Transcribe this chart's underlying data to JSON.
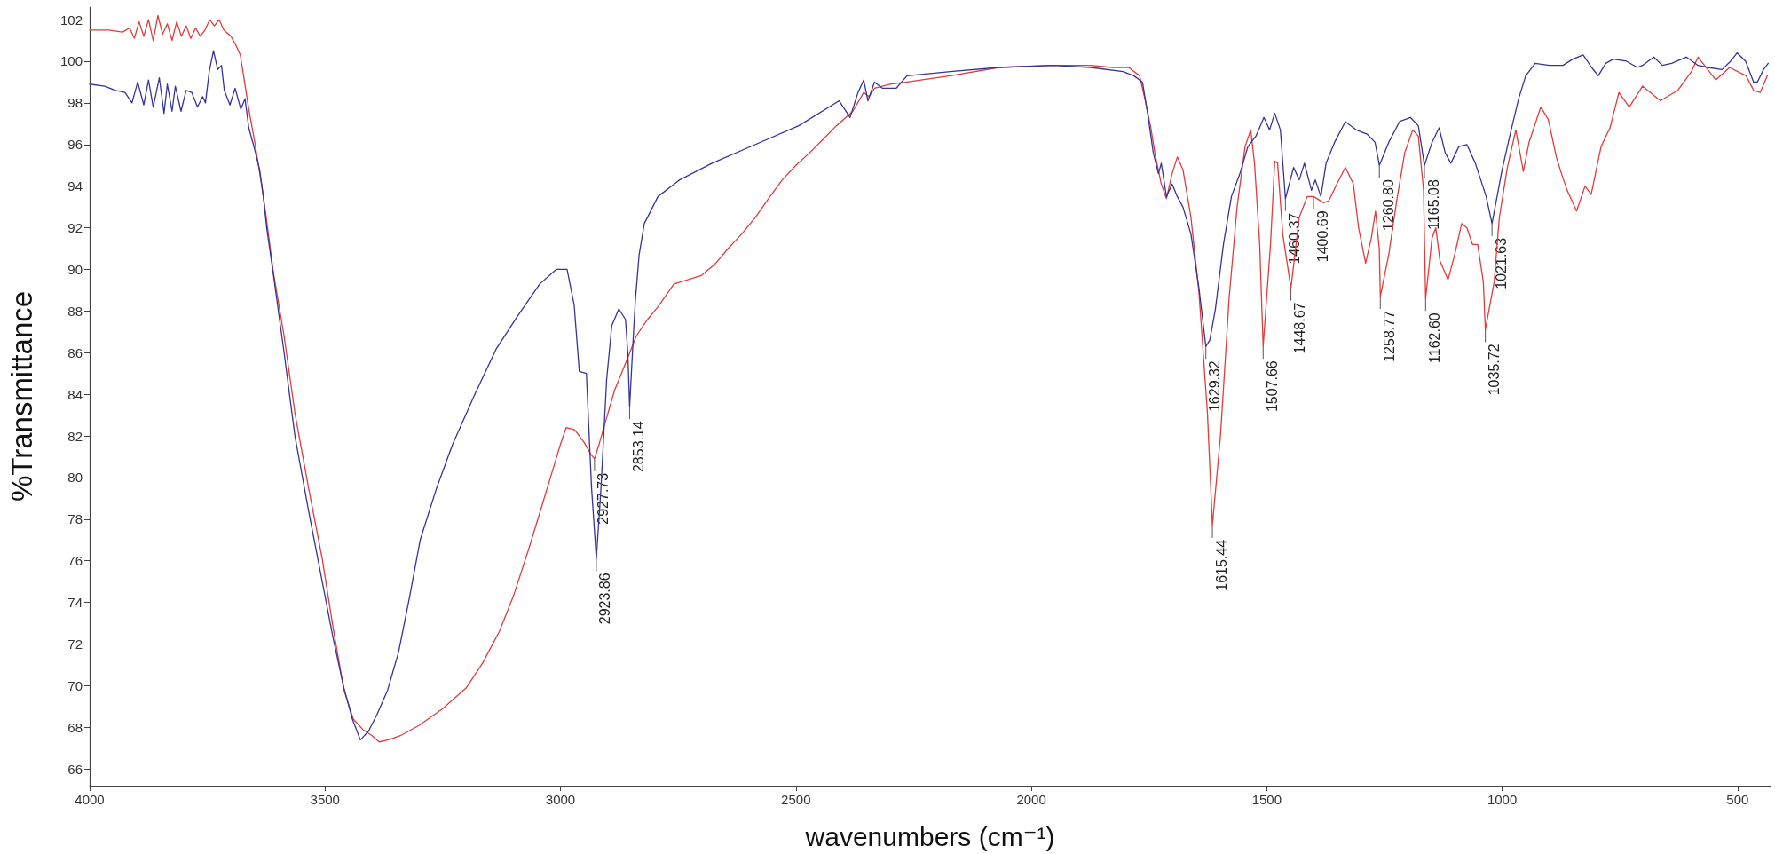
{
  "chart_data": {
    "type": "line",
    "xlabel": "wavenumbers (cm⁻¹)",
    "ylabel": "%Transmittance",
    "xlim": [
      4000,
      430
    ],
    "xticks": [
      4000,
      3500,
      3000,
      2500,
      2000,
      1500,
      1000,
      500
    ],
    "ylim": [
      65.2,
      102.6
    ],
    "yticks": [
      66,
      68,
      70,
      72,
      74,
      76,
      78,
      80,
      82,
      84,
      86,
      88,
      90,
      92,
      94,
      96,
      98,
      100,
      102
    ],
    "series": [
      {
        "color": "#e23b3b",
        "x": [
          4000,
          3960,
          3930,
          3915,
          3905,
          3895,
          3885,
          3875,
          3865,
          3855,
          3845,
          3835,
          3825,
          3815,
          3805,
          3795,
          3785,
          3775,
          3765,
          3755,
          3745,
          3735,
          3725,
          3715,
          3700,
          3690,
          3680,
          3673,
          3662,
          3650,
          3635,
          3625,
          3610,
          3587,
          3564,
          3535,
          3506,
          3483,
          3460,
          3440,
          3420,
          3400,
          3385,
          3365,
          3340,
          3300,
          3250,
          3200,
          3165,
          3130,
          3100,
          3067,
          3040,
          3020,
          3000,
          2988,
          2970,
          2950,
          2935,
          2927.73,
          2918,
          2908,
          2885,
          2860,
          2839,
          2815,
          2793,
          2759,
          2730,
          2701,
          2670,
          2644,
          2615,
          2586,
          2555,
          2529,
          2500,
          2471,
          2440,
          2414,
          2379,
          2356,
          2345,
          2333,
          2300,
          2264,
          2172,
          2069,
          1954,
          1874,
          1828,
          1793,
          1770,
          1759,
          1747,
          1736,
          1724,
          1713,
          1701,
          1690,
          1678,
          1661,
          1644,
          1626,
          1615.44,
          1598,
          1580,
          1563,
          1546,
          1534,
          1526,
          1515,
          1507.66,
          1492,
          1483,
          1477,
          1466,
          1454,
          1448.67,
          1431,
          1414,
          1400.69,
          1379,
          1368,
          1351,
          1333,
          1316,
          1305,
          1290,
          1278,
          1269,
          1261,
          1258.77,
          1241,
          1224,
          1207,
          1190,
          1178,
          1167,
          1162.6,
          1149,
          1141,
          1132,
          1115,
          1101,
          1086,
          1075,
          1063,
          1052,
          1040,
          1035.72,
          1017,
          1006,
          989,
          971,
          955,
          943,
          918,
          902,
          885,
          874,
          862,
          842,
          824,
          811,
          790,
          771,
          752,
          730,
          702,
          664,
          627,
          598,
          584,
          546,
          517,
          482,
          466,
          452,
          437
        ],
        "values": [
          101.5,
          101.5,
          101.4,
          101.6,
          101.1,
          101.9,
          101.2,
          102.0,
          101.0,
          102.2,
          101.3,
          101.8,
          101.0,
          101.9,
          101.2,
          101.7,
          101.1,
          101.6,
          101.2,
          101.5,
          102.0,
          101.7,
          102.0,
          101.5,
          101.2,
          100.8,
          100.3,
          99.3,
          97.7,
          96.2,
          94.1,
          92.5,
          89.9,
          86.8,
          83.1,
          79.5,
          76.1,
          72.8,
          69.8,
          68.4,
          67.9,
          67.6,
          67.3,
          67.4,
          67.6,
          68.1,
          68.9,
          69.9,
          71.1,
          72.6,
          74.3,
          76.6,
          78.6,
          80.1,
          81.6,
          82.4,
          82.3,
          81.7,
          81.1,
          80.9,
          81.6,
          82.4,
          84.2,
          85.6,
          86.8,
          87.6,
          88.2,
          89.3,
          89.5,
          89.7,
          90.3,
          91.0,
          91.7,
          92.5,
          93.5,
          94.3,
          95.0,
          95.6,
          96.3,
          96.9,
          97.6,
          98.5,
          98.3,
          98.7,
          98.9,
          99.0,
          99.3,
          99.7,
          99.8,
          99.8,
          99.7,
          99.7,
          99.3,
          98.2,
          96.9,
          95.4,
          94.1,
          93.4,
          94.6,
          95.4,
          94.8,
          92.5,
          88.9,
          83.1,
          77.7,
          82.1,
          88.6,
          93.0,
          95.9,
          96.7,
          95.1,
          91.2,
          86.3,
          91.2,
          95.2,
          95.1,
          91.7,
          89.9,
          89.1,
          92.5,
          93.5,
          93.5,
          93.2,
          93.3,
          94.1,
          94.9,
          94.1,
          92.0,
          90.3,
          91.5,
          92.8,
          91.0,
          88.7,
          90.7,
          93.3,
          95.6,
          96.7,
          96.4,
          93.8,
          88.6,
          91.5,
          92.0,
          90.4,
          89.5,
          90.7,
          92.2,
          92.0,
          91.2,
          91.2,
          89.4,
          87.1,
          89.4,
          92.5,
          94.9,
          96.7,
          94.7,
          96.1,
          97.8,
          97.2,
          95.4,
          94.6,
          93.8,
          92.8,
          94.0,
          93.6,
          95.9,
          96.8,
          98.5,
          97.8,
          98.8,
          98.1,
          98.6,
          99.5,
          100.2,
          99.1,
          99.7,
          99.3,
          98.6,
          98.5,
          99.3
        ]
      },
      {
        "color": "#34349a",
        "x": [
          4000,
          3968,
          3945,
          3925,
          3910,
          3898,
          3885,
          3875,
          3865,
          3852,
          3842,
          3835,
          3825,
          3818,
          3806,
          3795,
          3783,
          3771,
          3760,
          3754,
          3746,
          3737,
          3728,
          3720,
          3714,
          3702,
          3691,
          3679,
          3670,
          3662,
          3650,
          3639,
          3631,
          3624,
          3610,
          3587,
          3564,
          3535,
          3506,
          3483,
          3460,
          3442,
          3425,
          3408,
          3390,
          3367,
          3344,
          3321,
          3298,
          3263,
          3229,
          3182,
          3136,
          3090,
          3044,
          3009,
          2986,
          2971,
          2960,
          2945,
          2934,
          2923.86,
          2914,
          2902,
          2891,
          2876,
          2862,
          2857,
          2853.14,
          2846,
          2841,
          2833,
          2822,
          2793,
          2747,
          2678,
          2586,
          2494,
          2408,
          2385,
          2368,
          2356,
          2347,
          2333,
          2316,
          2287,
          2264,
          2172,
          2069,
          1954,
          1874,
          1805,
          1782,
          1764,
          1753,
          1741,
          1730,
          1724,
          1713,
          1701,
          1690,
          1678,
          1661,
          1644,
          1629.32,
          1621,
          1609,
          1592,
          1575,
          1557,
          1540,
          1523,
          1506,
          1494,
          1483,
          1471,
          1460.37,
          1443,
          1431,
          1420,
          1405,
          1397,
          1385,
          1374,
          1356,
          1333,
          1310,
          1287,
          1270,
          1260.8,
          1241,
          1218,
          1195,
          1178,
          1165.08,
          1149,
          1134,
          1121,
          1109,
          1092,
          1075,
          1057,
          1034,
          1021.63,
          1000,
          983,
          965,
          950,
          930,
          900,
          871,
          850,
          828,
          810,
          796,
          780,
          764,
          736,
          713,
          702,
          678,
          660,
          640,
          609,
          584,
          563,
          533,
          515,
          501,
          483,
          466,
          458,
          445,
          435
        ],
        "values": [
          98.9,
          98.8,
          98.6,
          98.5,
          98.0,
          99.0,
          97.9,
          99.1,
          97.8,
          99.2,
          97.5,
          98.9,
          97.6,
          98.8,
          97.6,
          98.6,
          98.5,
          97.8,
          98.3,
          98.0,
          99.5,
          100.5,
          99.6,
          99.8,
          98.6,
          97.9,
          98.7,
          97.7,
          98.2,
          96.8,
          95.8,
          94.8,
          93.5,
          92.0,
          89.8,
          86.0,
          82.0,
          78.4,
          75.0,
          72.3,
          69.9,
          68.4,
          67.4,
          67.8,
          68.6,
          69.8,
          71.6,
          74.2,
          77.0,
          79.5,
          81.6,
          84.0,
          86.2,
          87.8,
          89.3,
          90.0,
          90.0,
          88.3,
          85.1,
          85.0,
          79.5,
          76.1,
          79.5,
          84.7,
          87.3,
          88.1,
          87.6,
          86.0,
          83.4,
          86.5,
          88.5,
          90.7,
          92.2,
          93.5,
          94.3,
          95.1,
          96.0,
          96.9,
          98.1,
          97.3,
          98.5,
          99.1,
          98.1,
          99.0,
          98.7,
          98.7,
          99.3,
          99.5,
          99.7,
          99.8,
          99.7,
          99.5,
          99.3,
          99.0,
          97.5,
          95.6,
          94.6,
          95.1,
          93.5,
          94.1,
          93.5,
          93.0,
          91.7,
          89.1,
          86.3,
          86.6,
          88.1,
          91.2,
          93.5,
          94.6,
          95.9,
          96.4,
          97.3,
          96.7,
          97.5,
          96.7,
          93.4,
          94.9,
          94.3,
          95.1,
          93.8,
          94.3,
          93.5,
          95.1,
          96.1,
          97.1,
          96.7,
          96.5,
          96.1,
          95.0,
          96.1,
          97.1,
          97.3,
          96.9,
          95.0,
          96.1,
          96.8,
          95.6,
          95.1,
          95.9,
          96.0,
          95.1,
          93.5,
          92.2,
          94.8,
          96.5,
          98.2,
          99.3,
          99.9,
          99.8,
          99.8,
          100.1,
          100.3,
          99.7,
          99.3,
          99.9,
          100.1,
          100.0,
          99.7,
          99.8,
          100.2,
          99.8,
          99.9,
          100.2,
          99.8,
          99.7,
          99.6,
          100.0,
          100.4,
          100.0,
          99.0,
          99.0,
          99.6,
          99.9
        ]
      }
    ],
    "annotations": [
      {
        "text": "2927.73",
        "x": 2927.73,
        "y": 80.9
      },
      {
        "text": "2923.86",
        "x": 2923.86,
        "y": 76.1
      },
      {
        "text": "2853.14",
        "x": 2853.14,
        "y": 83.4
      },
      {
        "text": "1629.32",
        "x": 1629.32,
        "y": 86.3
      },
      {
        "text": "1615.44",
        "x": 1615.44,
        "y": 77.7
      },
      {
        "text": "1507.66",
        "x": 1507.66,
        "y": 86.3
      },
      {
        "text": "1460.37",
        "x": 1460.37,
        "y": 93.4
      },
      {
        "text": "1448.67",
        "x": 1448.67,
        "y": 89.1
      },
      {
        "text": "1400.69",
        "x": 1400.69,
        "y": 93.5
      },
      {
        "text": "1260.80",
        "x": 1260.8,
        "y": 95.0
      },
      {
        "text": "1258.77",
        "x": 1258.77,
        "y": 88.7
      },
      {
        "text": "1165.08",
        "x": 1165.08,
        "y": 95.0
      },
      {
        "text": "1162.60",
        "x": 1162.6,
        "y": 88.6
      },
      {
        "text": "1035.72",
        "x": 1035.72,
        "y": 87.1
      },
      {
        "text": "1021.63",
        "x": 1021.63,
        "y": 92.2
      }
    ]
  }
}
